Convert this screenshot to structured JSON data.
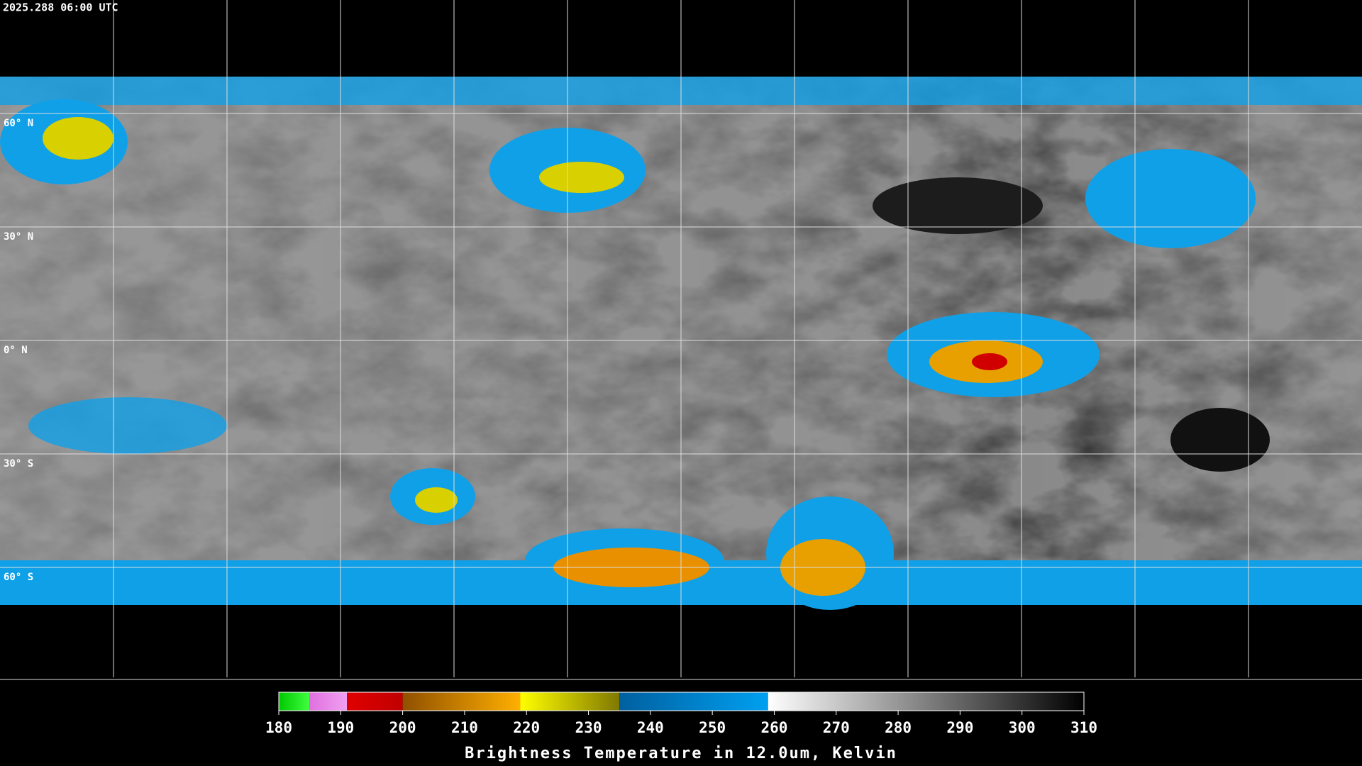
{
  "timestamp": "2025.288 06:00 UTC",
  "map": {
    "lat_labels": [
      "60° N",
      "30° N",
      "0° N",
      "30° S",
      "60° S"
    ]
  },
  "colorbar": {
    "title": "Brightness Temperature in 12.0um, Kelvin",
    "range": [
      180,
      310
    ],
    "ticks": [
      180,
      190,
      200,
      210,
      220,
      230,
      240,
      250,
      260,
      270,
      280,
      290,
      300,
      310
    ],
    "segments": [
      {
        "from": 180,
        "to": 185,
        "colors": [
          "#00c800",
          "#40ff40"
        ]
      },
      {
        "from": 185,
        "to": 191,
        "colors": [
          "#e070e0",
          "#f0a0f0"
        ]
      },
      {
        "from": 191,
        "to": 200,
        "colors": [
          "#e00000",
          "#c00000"
        ]
      },
      {
        "from": 200,
        "to": 219,
        "colors": [
          "#905000",
          "#ffb000"
        ]
      },
      {
        "from": 219,
        "to": 235,
        "colors": [
          "#ffff00",
          "#807800"
        ]
      },
      {
        "from": 235,
        "to": 259,
        "colors": [
          "#0060a0",
          "#00a0f0"
        ]
      },
      {
        "from": 259,
        "to": 310,
        "colors": [
          "#ffffff",
          "#000000"
        ]
      }
    ]
  }
}
